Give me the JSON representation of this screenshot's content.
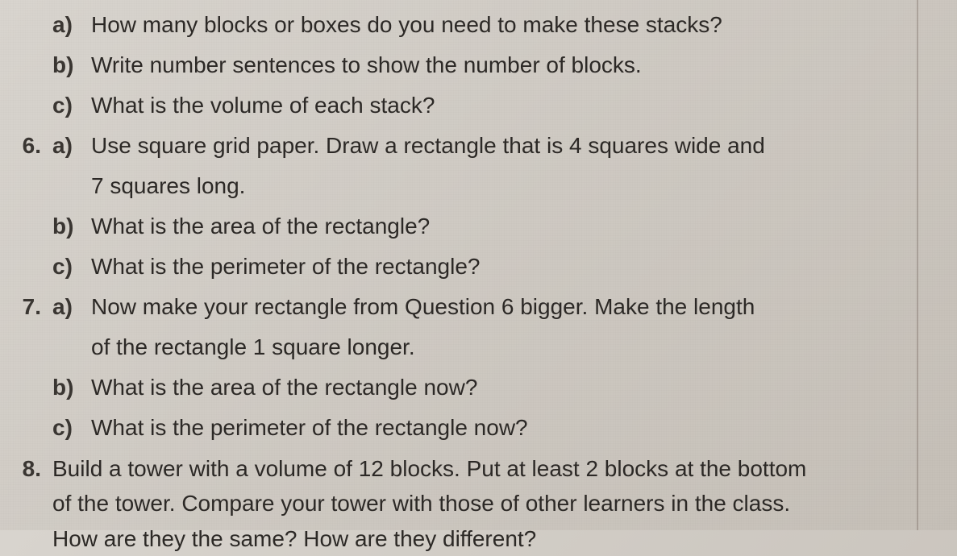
{
  "document": {
    "background_color": "#d0cbc3",
    "text_color": "#2c2926",
    "font_family": "Arial",
    "font_size_pt": 21,
    "line_height": 1.5
  },
  "q5": {
    "a": {
      "letter": "a)",
      "text": "How many blocks or boxes do you need to make these stacks?"
    },
    "b": {
      "letter": "b)",
      "text": "Write number sentences to show the number of blocks."
    },
    "c": {
      "letter": "c)",
      "text": "What is the volume of each stack?"
    }
  },
  "q6": {
    "number": "6.",
    "a": {
      "letter": "a)",
      "text": "Use square grid paper. Draw a rectangle that is 4 squares wide and",
      "cont": "7 squares long."
    },
    "b": {
      "letter": "b)",
      "text": "What is the area of the rectangle?"
    },
    "c": {
      "letter": "c)",
      "text": "What is the perimeter of the rectangle?"
    }
  },
  "q7": {
    "number": "7.",
    "a": {
      "letter": "a)",
      "text": "Now make your rectangle from Question 6 bigger. Make the length",
      "cont": "of the rectangle 1 square longer."
    },
    "b": {
      "letter": "b)",
      "text": "What is the area of the rectangle now?"
    },
    "c": {
      "letter": "c)",
      "text": "What is the perimeter of the rectangle now?"
    }
  },
  "q8": {
    "number": "8.",
    "line1": "Build a tower with a volume of 12 blocks. Put at least 2 blocks at the bottom",
    "line2": "of the tower. Compare your tower with those of other learners in the class.",
    "line3": "How are they the same? How are they different?"
  }
}
